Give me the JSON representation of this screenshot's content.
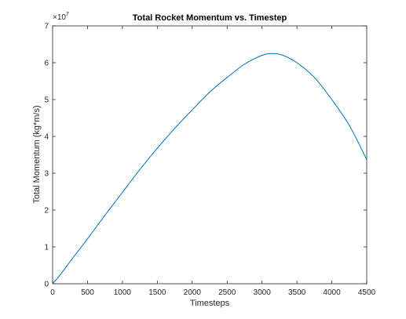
{
  "chart_data": {
    "type": "line",
    "title": "Total Rocket Momentum vs. Timestep",
    "xlabel": "Timesteps",
    "ylabel": "Total Momentum (kg*m/s)",
    "xlim": [
      0,
      4500
    ],
    "ylim": [
      0,
      7
    ],
    "x_ticks": [
      "0",
      "500",
      "1000",
      "1500",
      "2000",
      "2500",
      "3000",
      "3500",
      "4000",
      "4500"
    ],
    "y_ticks": [
      "0",
      "1",
      "2",
      "3",
      "4",
      "5",
      "6",
      "7"
    ],
    "y_exponent_base": "×10",
    "y_exponent_power": "7",
    "grid": false,
    "legend": "none",
    "series": [
      {
        "color": "#0072bd",
        "x": [
          0,
          100,
          250,
          500,
          750,
          1000,
          1250,
          1500,
          1750,
          2000,
          2250,
          2500,
          2750,
          3000,
          3150,
          3300,
          3500,
          3750,
          4000,
          4250,
          4500
        ],
        "y": [
          0.0,
          0.22,
          0.6,
          1.22,
          1.86,
          2.48,
          3.1,
          3.68,
          4.22,
          4.72,
          5.2,
          5.6,
          5.96,
          6.2,
          6.25,
          6.2,
          6.0,
          5.6,
          5.0,
          4.3,
          3.37
        ]
      }
    ]
  }
}
